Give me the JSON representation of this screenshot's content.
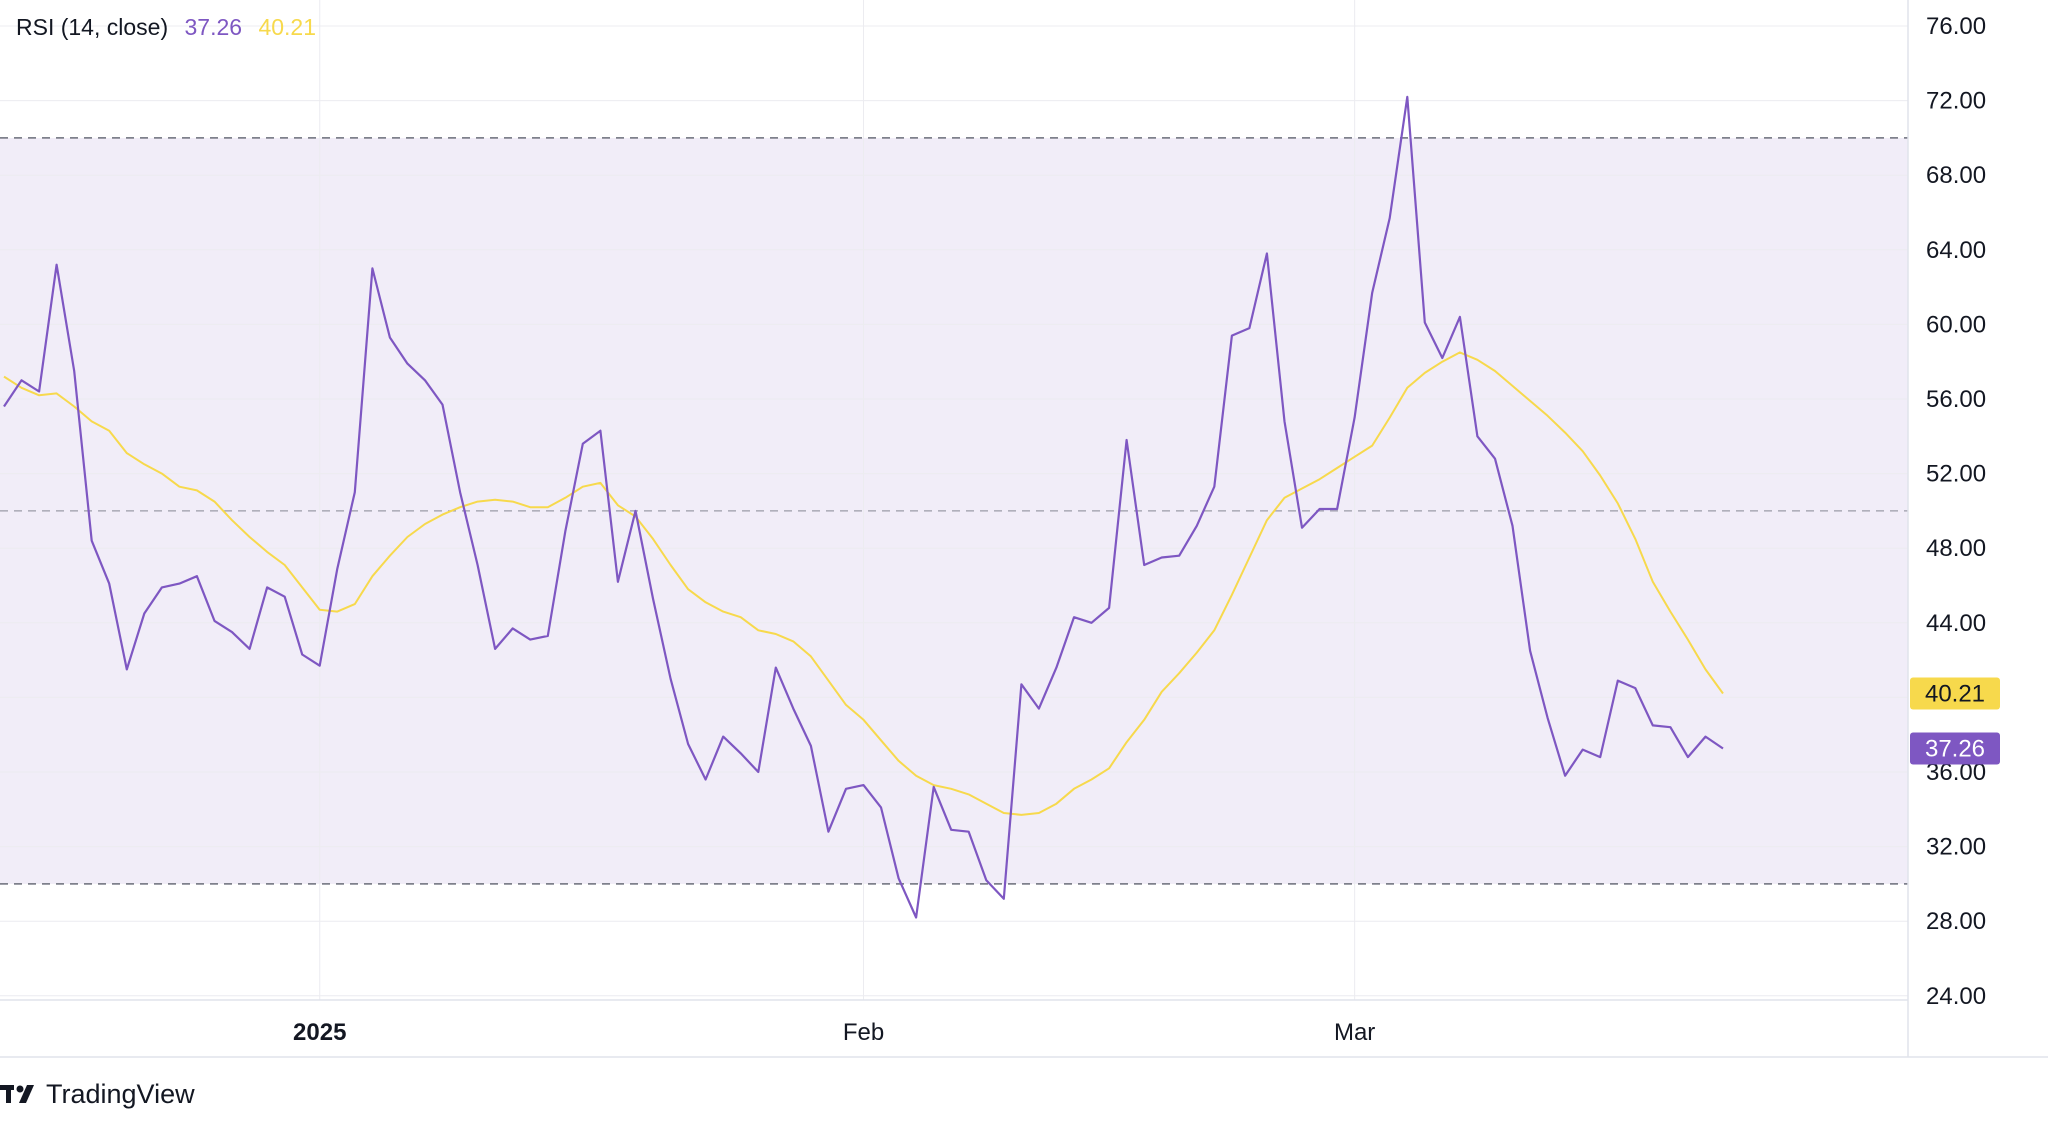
{
  "legend": {
    "name": "RSI (14, close)",
    "rsi_value": "37.26",
    "ma_value": "40.21"
  },
  "colors": {
    "rsi": "#7e57c2",
    "ma": "#f7d94c",
    "band": "#f1edf8",
    "grid": "#ececf0",
    "dashed": "#787b86",
    "axis_border": "#e0e3eb",
    "ma_badge_text": "#131722",
    "rsi_badge_text": "#ffffff"
  },
  "branding": {
    "name": "TradingView",
    "icon": "tradingview-logo-icon"
  },
  "chart_data": {
    "type": "line",
    "title": "RSI (14, close)",
    "y_axis": {
      "ylim": [
        24,
        78
      ],
      "ticks": [
        "76.00",
        "72.00",
        "68.00",
        "64.00",
        "60.00",
        "56.00",
        "52.00",
        "48.00",
        "44.00",
        "40.00",
        "36.00",
        "32.00",
        "28.00",
        "24.00"
      ],
      "position": "right"
    },
    "x_axis": {
      "labels": [
        {
          "label": "2025",
          "index": 18,
          "bold": true
        },
        {
          "label": "Feb",
          "index": 49,
          "bold": false
        },
        {
          "label": "Mar",
          "index": 77,
          "bold": false
        }
      ]
    },
    "levels": [
      {
        "value": 70,
        "style": "dashed"
      },
      {
        "value": 50,
        "style": "dashed"
      },
      {
        "value": 30,
        "style": "dashed"
      }
    ],
    "band": [
      30,
      70
    ],
    "grid": true,
    "series": [
      {
        "name": "RSI",
        "last_value": "37.26",
        "values": [
          55.6,
          57.0,
          56.4,
          63.2,
          57.5,
          48.4,
          46.1,
          41.5,
          44.5,
          45.9,
          46.1,
          46.5,
          44.1,
          43.5,
          42.6,
          45.9,
          45.4,
          42.3,
          41.7,
          46.9,
          51.0,
          63.0,
          59.3,
          57.9,
          57.0,
          55.7,
          51.0,
          47.1,
          42.6,
          43.7,
          43.1,
          43.3,
          48.9,
          53.6,
          54.3,
          46.2,
          50.0,
          45.3,
          41.0,
          37.5,
          35.6,
          37.9,
          37.0,
          36.0,
          41.6,
          39.4,
          37.4,
          32.8,
          35.1,
          35.3,
          34.1,
          30.3,
          28.2,
          35.2,
          32.9,
          32.8,
          30.2,
          29.2,
          40.7,
          39.4,
          41.6,
          44.3,
          44.0,
          44.8,
          53.8,
          47.1,
          47.5,
          47.6,
          49.2,
          51.3,
          59.4,
          59.8,
          63.8,
          54.8,
          49.1,
          50.1,
          50.1,
          55.0,
          61.7,
          65.7,
          72.2,
          60.1,
          58.2,
          60.4,
          54.0,
          52.8,
          49.2,
          42.5,
          38.9,
          35.8,
          37.2,
          36.8,
          40.9,
          40.5,
          38.5,
          38.4,
          36.8,
          37.9,
          37.26
        ]
      },
      {
        "name": "MA",
        "last_value": "40.21",
        "values": [
          57.2,
          56.6,
          56.2,
          56.3,
          55.6,
          54.8,
          54.3,
          53.1,
          52.5,
          52.0,
          51.3,
          51.1,
          50.5,
          49.5,
          48.6,
          47.8,
          47.1,
          45.9,
          44.7,
          44.6,
          45.0,
          46.5,
          47.6,
          48.6,
          49.3,
          49.8,
          50.2,
          50.5,
          50.6,
          50.5,
          50.2,
          50.2,
          50.7,
          51.3,
          51.5,
          50.3,
          49.7,
          48.5,
          47.1,
          45.8,
          45.1,
          44.6,
          44.3,
          43.6,
          43.4,
          43.0,
          42.2,
          40.9,
          39.6,
          38.8,
          37.7,
          36.6,
          35.8,
          35.3,
          35.1,
          34.8,
          34.3,
          33.8,
          33.7,
          33.8,
          34.3,
          35.1,
          35.6,
          36.2,
          37.6,
          38.8,
          40.3,
          41.3,
          42.4,
          43.6,
          45.5,
          47.5,
          49.5,
          50.7,
          51.2,
          51.7,
          52.3,
          52.9,
          53.5,
          55.0,
          56.6,
          57.4,
          58.0,
          58.5,
          58.1,
          57.5,
          56.7,
          55.9,
          55.1,
          54.2,
          53.2,
          51.9,
          50.4,
          48.5,
          46.2,
          44.6,
          43.1,
          41.5,
          40.21
        ]
      }
    ]
  }
}
